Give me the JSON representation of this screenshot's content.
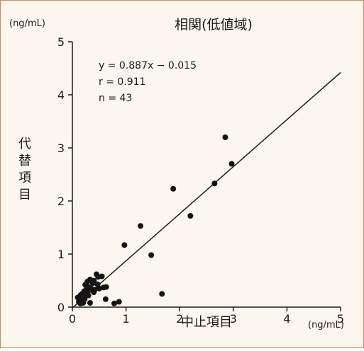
{
  "chart_data": {
    "type": "scatter",
    "title": "相関(低値域)",
    "unit_label_y": "(ng/mL)",
    "unit_label_x": "(ng/mL)",
    "xlabel": "中止項目",
    "ylabel": "代替項目",
    "xlim": [
      0,
      5
    ],
    "ylim": [
      0,
      5
    ],
    "x_ticks": [
      "0",
      "1",
      "2",
      "3",
      "4",
      "5"
    ],
    "y_ticks": [
      "0",
      "1",
      "2",
      "3",
      "4",
      "5"
    ],
    "grid": false,
    "annotations": [
      "y = 0.887x − 0.015",
      "r = 0.911",
      "n = 43"
    ],
    "regression": {
      "slope": 0.887,
      "intercept": -0.015
    },
    "points": [
      {
        "x": 0.1,
        "y": 0.18
      },
      {
        "x": 0.12,
        "y": 0.1
      },
      {
        "x": 0.15,
        "y": 0.22
      },
      {
        "x": 0.15,
        "y": 0.07
      },
      {
        "x": 0.17,
        "y": 0.12
      },
      {
        "x": 0.18,
        "y": 0.25
      },
      {
        "x": 0.2,
        "y": 0.2
      },
      {
        "x": 0.2,
        "y": 0.08
      },
      {
        "x": 0.22,
        "y": 0.3
      },
      {
        "x": 0.23,
        "y": 0.15
      },
      {
        "x": 0.24,
        "y": 0.42
      },
      {
        "x": 0.25,
        "y": 0.22
      },
      {
        "x": 0.26,
        "y": 0.33
      },
      {
        "x": 0.28,
        "y": 0.28
      },
      {
        "x": 0.28,
        "y": 0.48
      },
      {
        "x": 0.3,
        "y": 0.38
      },
      {
        "x": 0.3,
        "y": 0.22
      },
      {
        "x": 0.33,
        "y": 0.52
      },
      {
        "x": 0.33,
        "y": 0.08
      },
      {
        "x": 0.35,
        "y": 0.35
      },
      {
        "x": 0.38,
        "y": 0.45
      },
      {
        "x": 0.4,
        "y": 0.5
      },
      {
        "x": 0.42,
        "y": 0.33
      },
      {
        "x": 0.45,
        "y": 0.62
      },
      {
        "x": 0.47,
        "y": 0.43
      },
      {
        "x": 0.48,
        "y": 0.57
      },
      {
        "x": 0.5,
        "y": 0.35
      },
      {
        "x": 0.55,
        "y": 0.58
      },
      {
        "x": 0.58,
        "y": 0.37
      },
      {
        "x": 0.62,
        "y": 0.15
      },
      {
        "x": 0.63,
        "y": 0.38
      },
      {
        "x": 0.78,
        "y": 0.07
      },
      {
        "x": 0.87,
        "y": 0.1
      },
      {
        "x": 0.97,
        "y": 1.17
      },
      {
        "x": 1.27,
        "y": 1.53
      },
      {
        "x": 1.47,
        "y": 0.98
      },
      {
        "x": 1.67,
        "y": 0.25
      },
      {
        "x": 1.88,
        "y": 2.23
      },
      {
        "x": 2.2,
        "y": 1.72
      },
      {
        "x": 2.65,
        "y": 2.33
      },
      {
        "x": 2.85,
        "y": 3.2
      },
      {
        "x": 2.97,
        "y": 2.7
      },
      {
        "x": 0.4,
        "y": 0.28
      }
    ]
  }
}
